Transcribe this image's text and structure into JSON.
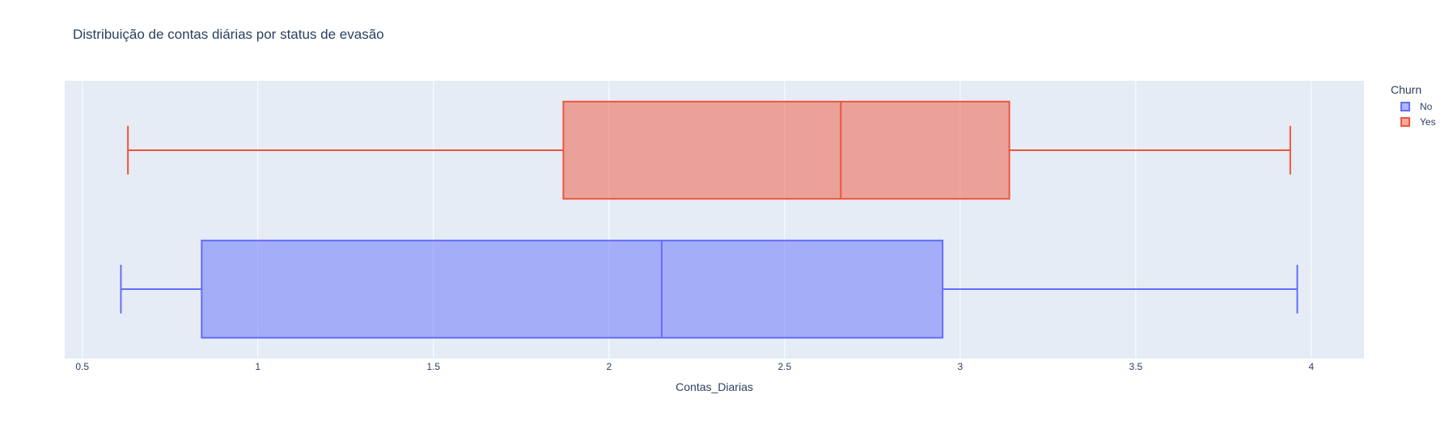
{
  "chart_data": {
    "type": "box",
    "title": "Distribuição de contas diárias por status de evasão",
    "xlabel": "Contas_Diarias",
    "ylabel": "",
    "xlim": [
      0.45,
      4.15
    ],
    "xticks": [
      0.5,
      1,
      1.5,
      2,
      2.5,
      3,
      3.5,
      4
    ],
    "xtick_labels": [
      "0.5",
      "1",
      "1.5",
      "2",
      "2.5",
      "3",
      "3.5",
      "4"
    ],
    "grid": true,
    "orientation": "horizontal",
    "legend_title": "Churn",
    "legend_position": "top-right",
    "series": [
      {
        "name": "No",
        "color": "#636efa",
        "min": 0.61,
        "q1": 0.84,
        "median": 2.15,
        "q3": 2.95,
        "max": 3.96
      },
      {
        "name": "Yes",
        "color": "#ef553b",
        "min": 0.63,
        "q1": 1.87,
        "median": 2.66,
        "q3": 3.14,
        "max": 3.94
      }
    ]
  }
}
